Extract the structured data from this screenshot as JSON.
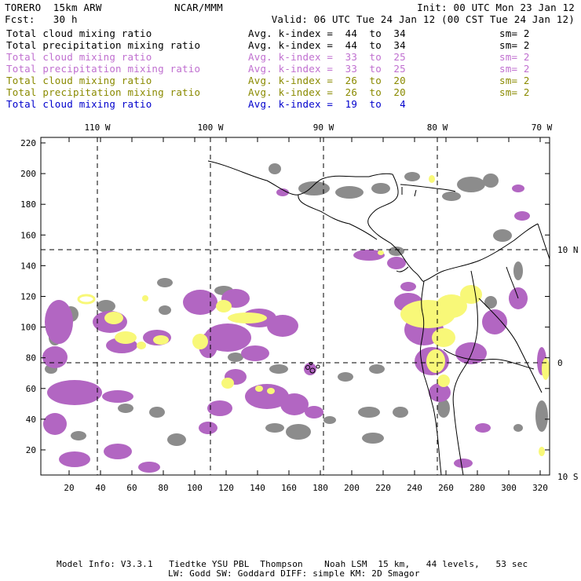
{
  "header": {
    "model": "TORERO  15km ARW",
    "org": "NCAR/MMM",
    "init": "Init: 00 UTC Mon 23 Jan 12",
    "fcst": "Fcst:   30 h",
    "valid": "Valid: 06 UTC Tue 24 Jan 12 (00 CST Tue 24 Jan 12)"
  },
  "legend": [
    {
      "field": "Total cloud mixing ratio",
      "kidx": "Avg. k-index =  44  to  34",
      "sm": "sm= 2",
      "color": "#000000"
    },
    {
      "field": "Total precipitation mixing ratio",
      "kidx": "Avg. k-index =  44  to  34",
      "sm": "sm= 2",
      "color": "#000000"
    },
    {
      "field": "Total cloud mixing ratio",
      "kidx": "Avg. k-index =  33  to  25",
      "sm": "sm= 2",
      "color": "#c070d0"
    },
    {
      "field": "Total precipitation mixing ratio",
      "kidx": "Avg. k-index =  33  to  25",
      "sm": "sm= 2",
      "color": "#c070d0"
    },
    {
      "field": "Total cloud mixing ratio",
      "kidx": "Avg. k-index =  26  to  20",
      "sm": "sm= 2",
      "color": "#8a8a00"
    },
    {
      "field": "Total precipitation mixing ratio",
      "kidx": "Avg. k-index =  26  to  20",
      "sm": "sm= 2",
      "color": "#8a8a00"
    },
    {
      "field": "Total cloud mixing ratio",
      "kidx": "Avg. k-index =  19  to   4",
      "sm": "",
      "color": "#0000cc"
    }
  ],
  "axes": {
    "top_lon": [
      "110 W",
      "100 W",
      "90 W",
      "80 W",
      "70 W"
    ],
    "right_lat": [
      "10 N",
      "0",
      "10 S"
    ],
    "left_y": [
      "220",
      "200",
      "180",
      "160",
      "140",
      "120",
      "100",
      "80",
      "60",
      "40",
      "20"
    ],
    "bottom_x": [
      "20",
      "40",
      "60",
      "80",
      "100",
      "120",
      "140",
      "160",
      "180",
      "200",
      "220",
      "240",
      "260",
      "280",
      "300",
      "320"
    ]
  },
  "colors": {
    "gray": "#8c8c8c",
    "purple": "#b266c2",
    "yellow": "#f8f878"
  },
  "footer": {
    "line1": "Model Info: V3.3.1   Tiedtke YSU PBL  Thompson    Noah LSM  15 km,   44 levels,   53 sec",
    "line2": "LW: Godd SW: Goddard DIFF: simple KM: 2D Smagor"
  }
}
